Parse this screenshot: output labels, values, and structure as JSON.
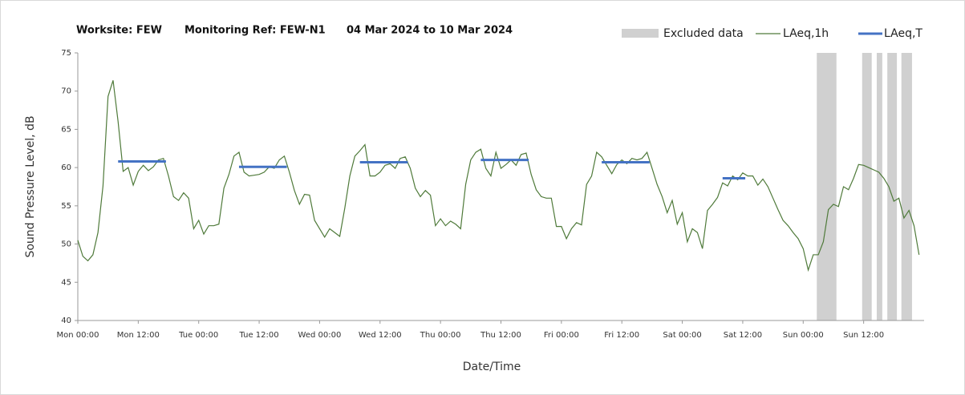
{
  "chart_data": {
    "type": "line",
    "title": [
      "Worksite: FEW",
      "Monitoring Ref: FEW-N1",
      "04 Mar 2024 to 10 Mar 2024"
    ],
    "ylabel": "Sound Pressure Level, dB",
    "xlabel": "Date/Time",
    "xlim": [
      0,
      168
    ],
    "xticks": [
      {
        "value": 0,
        "label": "Mon 00:00"
      },
      {
        "value": 12,
        "label": "Mon 12:00"
      },
      {
        "value": 24,
        "label": "Tue 00:00"
      },
      {
        "value": 36,
        "label": "Tue 12:00"
      },
      {
        "value": 48,
        "label": "Wed 00:00"
      },
      {
        "value": 60,
        "label": "Wed 12:00"
      },
      {
        "value": 72,
        "label": "Thu 00:00"
      },
      {
        "value": 84,
        "label": "Thu 12:00"
      },
      {
        "value": 96,
        "label": "Fri 00:00"
      },
      {
        "value": 108,
        "label": "Fri 12:00"
      },
      {
        "value": 120,
        "label": "Sat 00:00"
      },
      {
        "value": 132,
        "label": "Sat 12:00"
      },
      {
        "value": 144,
        "label": "Sun 00:00"
      },
      {
        "value": 156,
        "label": "Sun 12:00"
      }
    ],
    "ylim": [
      40,
      75
    ],
    "yticks": [
      40,
      45,
      50,
      55,
      60,
      65,
      70,
      75
    ],
    "x": [
      0,
      1,
      2,
      3,
      4,
      5,
      6,
      7,
      8,
      9,
      10,
      11,
      12,
      13,
      14,
      15,
      16,
      17,
      18,
      19,
      20,
      21,
      22,
      23,
      24,
      25,
      26,
      27,
      28,
      29,
      30,
      31,
      32,
      33,
      34,
      35,
      36,
      37,
      38,
      39,
      40,
      41,
      42,
      43,
      44,
      45,
      46,
      47,
      48,
      49,
      50,
      51,
      52,
      53,
      54,
      55,
      56,
      57,
      58,
      59,
      60,
      61,
      62,
      63,
      64,
      65,
      66,
      67,
      68,
      69,
      70,
      71,
      72,
      73,
      74,
      75,
      76,
      77,
      78,
      79,
      80,
      81,
      82,
      83,
      84,
      85,
      86,
      87,
      88,
      89,
      90,
      91,
      92,
      93,
      94,
      95,
      96,
      97,
      98,
      99,
      100,
      101,
      102,
      103,
      104,
      105,
      106,
      107,
      108,
      109,
      110,
      111,
      112,
      113,
      114,
      115,
      116,
      117,
      118,
      119,
      120,
      121,
      122,
      123,
      124,
      125,
      126,
      127,
      128,
      129,
      130,
      131,
      132,
      133,
      134,
      135,
      136,
      137,
      138,
      139,
      140,
      141,
      142,
      143,
      144,
      145,
      146,
      147,
      148,
      149,
      150,
      151,
      152,
      153,
      154,
      155,
      156,
      157,
      158,
      159,
      160,
      161,
      162,
      163,
      164,
      165,
      166,
      167
    ],
    "series": [
      {
        "name": "LAeq,1h",
        "color": "#4f7a3a",
        "values": [
          50.5,
          48.4,
          47.8,
          48.6,
          51.5,
          57.6,
          69.3,
          71.4,
          66,
          59.5,
          60,
          57.7,
          59.5,
          60.3,
          59.6,
          60.1,
          61,
          61.2,
          58.9,
          56.2,
          55.7,
          56.7,
          56,
          52,
          53.1,
          51.3,
          52.4,
          52.4,
          52.6,
          57.3,
          59.1,
          61.5,
          62,
          59.4,
          58.9,
          59,
          59.1,
          59.4,
          60.1,
          59.9,
          61,
          61.5,
          59.4,
          57,
          55.2,
          56.5,
          56.4,
          53.1,
          52,
          50.9,
          52,
          51.5,
          51,
          54.7,
          58.9,
          61.5,
          62.2,
          63,
          58.9,
          58.9,
          59.4,
          60.3,
          60.5,
          59.9,
          61.2,
          61.4,
          59.9,
          57.3,
          56.2,
          57,
          56.4,
          52.4,
          53.3,
          52.4,
          53,
          52.6,
          52,
          57.8,
          61,
          62,
          62.4,
          59.9,
          58.9,
          62,
          59.9,
          60.4,
          61,
          60.3,
          61.7,
          61.9,
          59.1,
          57.1,
          56.2,
          56,
          56,
          52.3,
          52.3,
          50.7,
          52,
          52.8,
          52.5,
          57.8,
          58.9,
          62,
          61.4,
          60.3,
          59.2,
          60.4,
          61,
          60.5,
          61.2,
          61,
          61.2,
          62,
          59.9,
          57.8,
          56.2,
          54.1,
          55.7,
          52.6,
          54.1,
          50.3,
          52,
          51.5,
          49.4,
          54.4,
          55.2,
          56.1,
          58,
          57.6,
          58.9,
          58.4,
          59.3,
          58.9,
          58.9,
          57.7,
          58.5,
          57.5,
          56,
          54.5,
          53.1,
          52.4,
          51.5,
          50.7,
          49.4,
          46.6,
          48.6,
          48.6,
          50.3,
          54.5,
          55.2,
          54.9,
          57.5,
          57.1,
          58.6,
          60.4,
          60.3,
          60,
          59.7,
          59.4,
          58.6,
          57.5,
          55.6,
          56,
          53.4,
          54.4,
          52.4,
          48.6
        ]
      }
    ],
    "periods": {
      "name": "LAeq,T",
      "color": "#4472c4",
      "start": [
        8,
        32,
        56,
        80,
        104,
        128
      ],
      "end": [
        17.5,
        41.5,
        65.5,
        89.5,
        113.5,
        132.5
      ],
      "values": [
        60.8,
        60.1,
        60.7,
        61.0,
        60.7,
        58.6
      ]
    },
    "excluded": {
      "name": "Excluded data",
      "color": "#d0d0d0",
      "start": [
        146.7,
        155.7,
        158.6,
        160.7,
        163.5
      ],
      "end": [
        150.6,
        157.6,
        159.7,
        162.6,
        165.6
      ]
    }
  }
}
